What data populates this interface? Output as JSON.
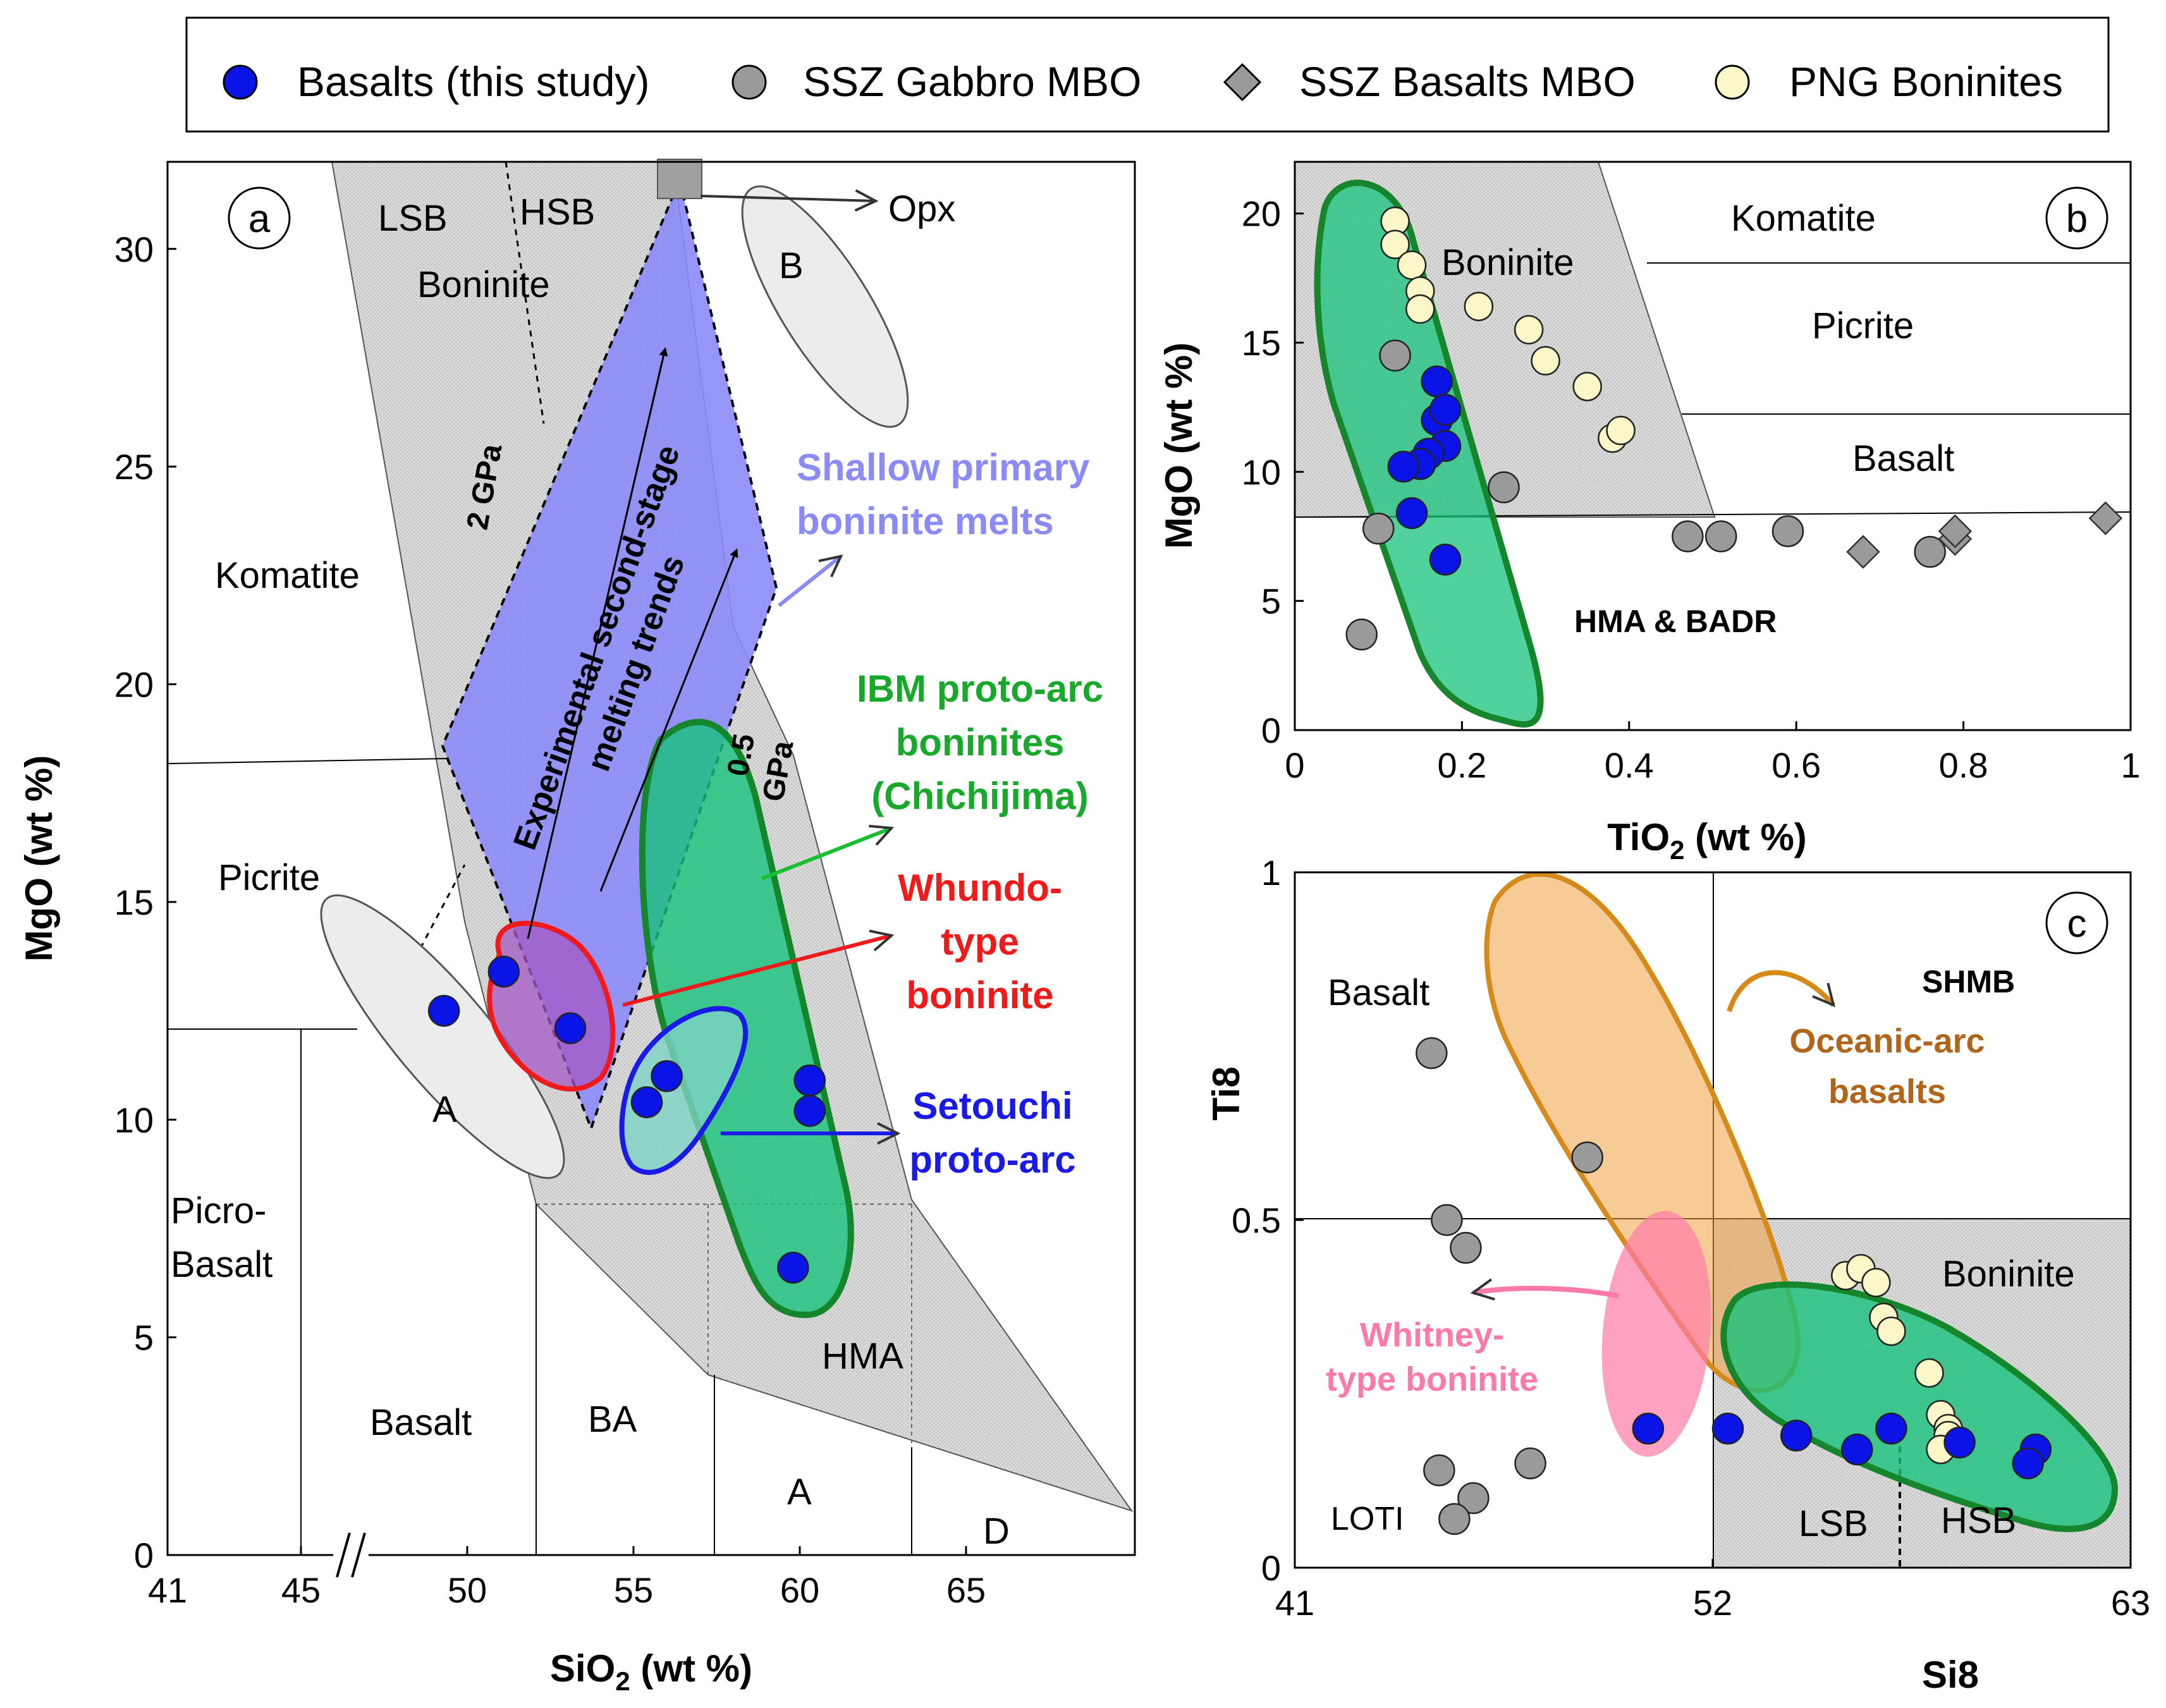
{
  "legend": {
    "items": [
      {
        "label": "Basalts (this study)",
        "marker": "circle",
        "color": "#0a14e6"
      },
      {
        "label": "SSZ Gabbro MBO",
        "marker": "circle",
        "color": "#9a9a9a"
      },
      {
        "label": "SSZ Basalts MBO",
        "marker": "diamond",
        "color": "#9a9a9a"
      },
      {
        "label": "PNG Boninites",
        "marker": "circle",
        "color": "#fbf7c8"
      }
    ]
  },
  "chart_data": [
    {
      "id": "a",
      "type": "scatter",
      "panel_label": "a",
      "xlabel": "SiO2 (wt %)",
      "ylabel": "MgO (wt %)",
      "xlim": [
        41,
        70
      ],
      "ylim": [
        0,
        32
      ],
      "xticks": [
        41,
        45,
        50,
        55,
        60,
        65
      ],
      "yticks": [
        0,
        5,
        10,
        15,
        20,
        25,
        30
      ],
      "axis_break": "//",
      "field_labels": [
        "LSB",
        "HSB",
        "Boninite",
        "Komatite",
        "Picrite",
        "Picro-",
        "Basalt",
        "Basalt",
        "BA",
        "HMA",
        "A",
        "D",
        "A",
        "B",
        "Opx",
        "2 GPa",
        "0.5",
        "GPa"
      ],
      "annotations": {
        "melting_trends": [
          "Experimental second-stage",
          "melting trends"
        ],
        "shallow": [
          "Shallow primary",
          "boninite melts"
        ],
        "ibm": [
          "IBM proto-arc",
          "boninites",
          "(Chichijima)"
        ],
        "whundo": [
          "Whundo-",
          "type",
          "boninite"
        ],
        "setouchi": [
          "Setouchi",
          "proto-arc"
        ]
      },
      "series": [
        {
          "name": "Basalts (this study)",
          "points": [
            [
              49.3,
              12.5
            ],
            [
              51.1,
              13.4
            ],
            [
              53.1,
              12.1
            ],
            [
              55.4,
              10.4
            ],
            [
              56.0,
              11.0
            ],
            [
              60.3,
              10.9
            ],
            [
              60.3,
              10.2
            ],
            [
              59.8,
              6.6
            ]
          ]
        }
      ]
    },
    {
      "id": "b",
      "type": "scatter",
      "panel_label": "b",
      "xlabel": "TiO2 (wt %)",
      "ylabel": "MgO (wt %)",
      "xlim": [
        0,
        1
      ],
      "ylim": [
        0,
        22
      ],
      "xticks": [
        0,
        0.2,
        0.4,
        0.6,
        0.8,
        1
      ],
      "xtick_labels": [
        "0",
        "0.2",
        "0.4",
        "0.6",
        "0.8",
        "1"
      ],
      "yticks": [
        0,
        5,
        10,
        15,
        20
      ],
      "field_labels": [
        "Komatite",
        "Picrite",
        "Basalt",
        "Boninite",
        "HMA & BADR"
      ],
      "series": [
        {
          "name": "PNG Boninites",
          "points": [
            [
              0.12,
              19.7
            ],
            [
              0.12,
              18.8
            ],
            [
              0.14,
              18.0
            ],
            [
              0.15,
              17.0
            ],
            [
              0.15,
              16.3
            ],
            [
              0.22,
              16.4
            ],
            [
              0.28,
              15.5
            ],
            [
              0.3,
              14.3
            ],
            [
              0.35,
              13.3
            ],
            [
              0.38,
              11.3
            ],
            [
              0.39,
              11.6
            ]
          ]
        },
        {
          "name": "SSZ Gabbro MBO",
          "points": [
            [
              0.12,
              14.5
            ],
            [
              0.25,
              9.4
            ],
            [
              0.1,
              7.8
            ],
            [
              0.47,
              7.5
            ],
            [
              0.51,
              7.5
            ],
            [
              0.59,
              7.7
            ],
            [
              0.76,
              6.9
            ],
            [
              0.08,
              3.7
            ]
          ]
        },
        {
          "name": "SSZ Basalts MBO",
          "points": [
            [
              0.68,
              6.9
            ],
            [
              0.79,
              7.4
            ],
            [
              0.79,
              7.7
            ],
            [
              0.97,
              8.2
            ]
          ]
        },
        {
          "name": "Basalts (this study)",
          "points": [
            [
              0.17,
              13.5
            ],
            [
              0.17,
              12.0
            ],
            [
              0.18,
              12.4
            ],
            [
              0.18,
              11.0
            ],
            [
              0.16,
              10.7
            ],
            [
              0.15,
              10.3
            ],
            [
              0.13,
              10.2
            ],
            [
              0.14,
              8.4
            ],
            [
              0.18,
              6.6
            ]
          ]
        }
      ]
    },
    {
      "id": "c",
      "type": "scatter",
      "panel_label": "c",
      "xlabel": "Si8",
      "ylabel": "Ti8",
      "xlim": [
        41,
        63
      ],
      "ylim": [
        0,
        1
      ],
      "xticks": [
        41,
        52,
        63
      ],
      "yticks": [
        0,
        0.5,
        1
      ],
      "field_labels": [
        "Basalt",
        "SHMB",
        "Boninite",
        "LOTI",
        "LSB",
        "HSB"
      ],
      "annotations": {
        "oceanic": [
          "Oceanic-arc",
          "basalts"
        ],
        "whitney": [
          "Whitney-",
          "type boninite"
        ]
      },
      "series": [
        {
          "name": "SSZ Gabbro MBO",
          "points": [
            [
              44.6,
              0.74
            ],
            [
              45.0,
              0.5
            ],
            [
              45.5,
              0.46
            ],
            [
              48.7,
              0.59
            ],
            [
              44.8,
              0.14
            ],
            [
              45.7,
              0.1
            ],
            [
              45.2,
              0.07
            ],
            [
              47.2,
              0.15
            ]
          ]
        },
        {
          "name": "PNG Boninites",
          "points": [
            [
              55.5,
              0.42
            ],
            [
              55.9,
              0.43
            ],
            [
              56.3,
              0.41
            ],
            [
              56.5,
              0.36
            ],
            [
              56.7,
              0.34
            ],
            [
              57.7,
              0.28
            ],
            [
              58.0,
              0.22
            ],
            [
              58.2,
              0.2
            ],
            [
              58.2,
              0.19
            ],
            [
              58.0,
              0.17
            ]
          ]
        },
        {
          "name": "Basalts (this study)",
          "points": [
            [
              50.3,
              0.2
            ],
            [
              52.4,
              0.2
            ],
            [
              54.2,
              0.19
            ],
            [
              55.8,
              0.17
            ],
            [
              56.7,
              0.2
            ],
            [
              58.5,
              0.18
            ],
            [
              60.5,
              0.17
            ],
            [
              60.3,
              0.15
            ]
          ]
        }
      ]
    }
  ]
}
